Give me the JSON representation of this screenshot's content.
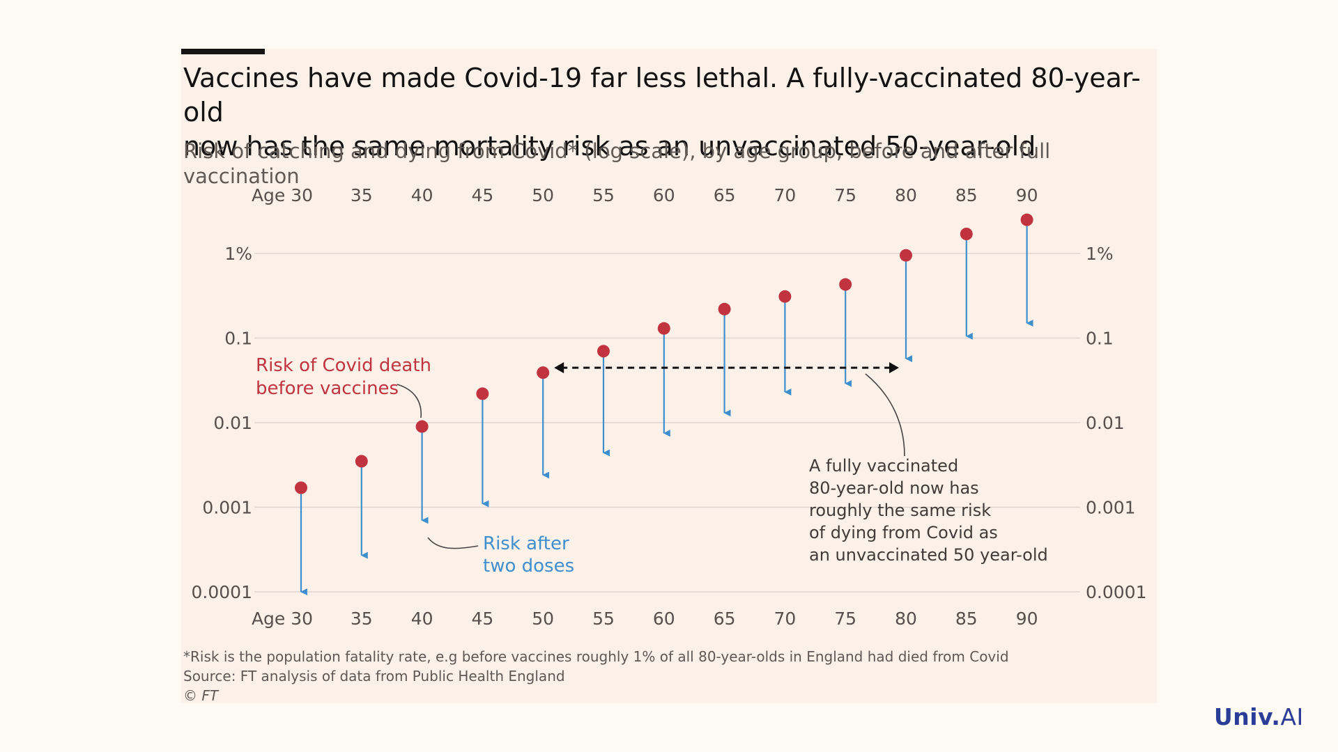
{
  "title": "Vaccines have made Covid-19 far less lethal. A fully-vaccinated 80-year-old\nnow has the same mortality risk as an unvaccinated 50-year-old",
  "subtitle": "Risk of catching and dying from Covid* (log scale), by age group, before and after full vaccination",
  "footnotes": {
    "note": "*Risk is the population fatality rate, e.g before vaccines roughly 1% of all 80-year-olds in England had died from Covid",
    "source": "Source: FT analysis of data from Public Health England",
    "credit": "© FT"
  },
  "brand": {
    "name": "Univ",
    "dot": ".",
    "suffix": "AI"
  },
  "colors": {
    "before": "#c0333f",
    "after": "#3d8fcd",
    "grid": "#ddd6d1",
    "text": "#55504d",
    "background": "#fcf1e9"
  },
  "chart_data": {
    "type": "scatter",
    "yscale": "log",
    "ylim": [
      0.0001,
      3
    ],
    "xlabel": "",
    "ylabel": "",
    "x_tick_labels": [
      "Age 30",
      "35",
      "40",
      "45",
      "50",
      "55",
      "60",
      "65",
      "70",
      "75",
      "80",
      "85",
      "90"
    ],
    "y_ticks": [
      {
        "value": 1,
        "label": "1%"
      },
      {
        "value": 0.1,
        "label": "0.1"
      },
      {
        "value": 0.01,
        "label": "0.01"
      },
      {
        "value": 0.001,
        "label": "0.001"
      },
      {
        "value": 0.0001,
        "label": "0.0001"
      }
    ],
    "categories": [
      30,
      35,
      40,
      45,
      50,
      55,
      60,
      65,
      70,
      75,
      80,
      85,
      90
    ],
    "series": [
      {
        "name": "Risk of Covid death before vaccines",
        "values": [
          0.0017,
          0.0035,
          0.009,
          0.022,
          0.039,
          0.07,
          0.13,
          0.22,
          0.31,
          0.43,
          0.95,
          1.7,
          2.5
        ]
      },
      {
        "name": "Risk after two doses",
        "values": [
          0.0001,
          0.00027,
          0.0007,
          0.0011,
          0.0024,
          0.0044,
          0.0075,
          0.013,
          0.023,
          0.029,
          0.057,
          0.105,
          0.15
        ]
      }
    ],
    "annotations": [
      {
        "text": "Risk of Covid death\nbefore vaccines",
        "points_to": {
          "series": 0,
          "age": 40
        }
      },
      {
        "text": "Risk after\ntwo doses",
        "points_to": {
          "series": 1,
          "age": 40
        }
      },
      {
        "text": "A fully vaccinated\n80-year-old now has\nroughly the same risk\nof dying from Covid as\nan unvaccinated 50 year-old",
        "points_to": {
          "age": 75
        }
      }
    ],
    "comparison_arrow": {
      "from_age": 50,
      "to_age": 80,
      "value": 0.039
    },
    "grid": true
  }
}
